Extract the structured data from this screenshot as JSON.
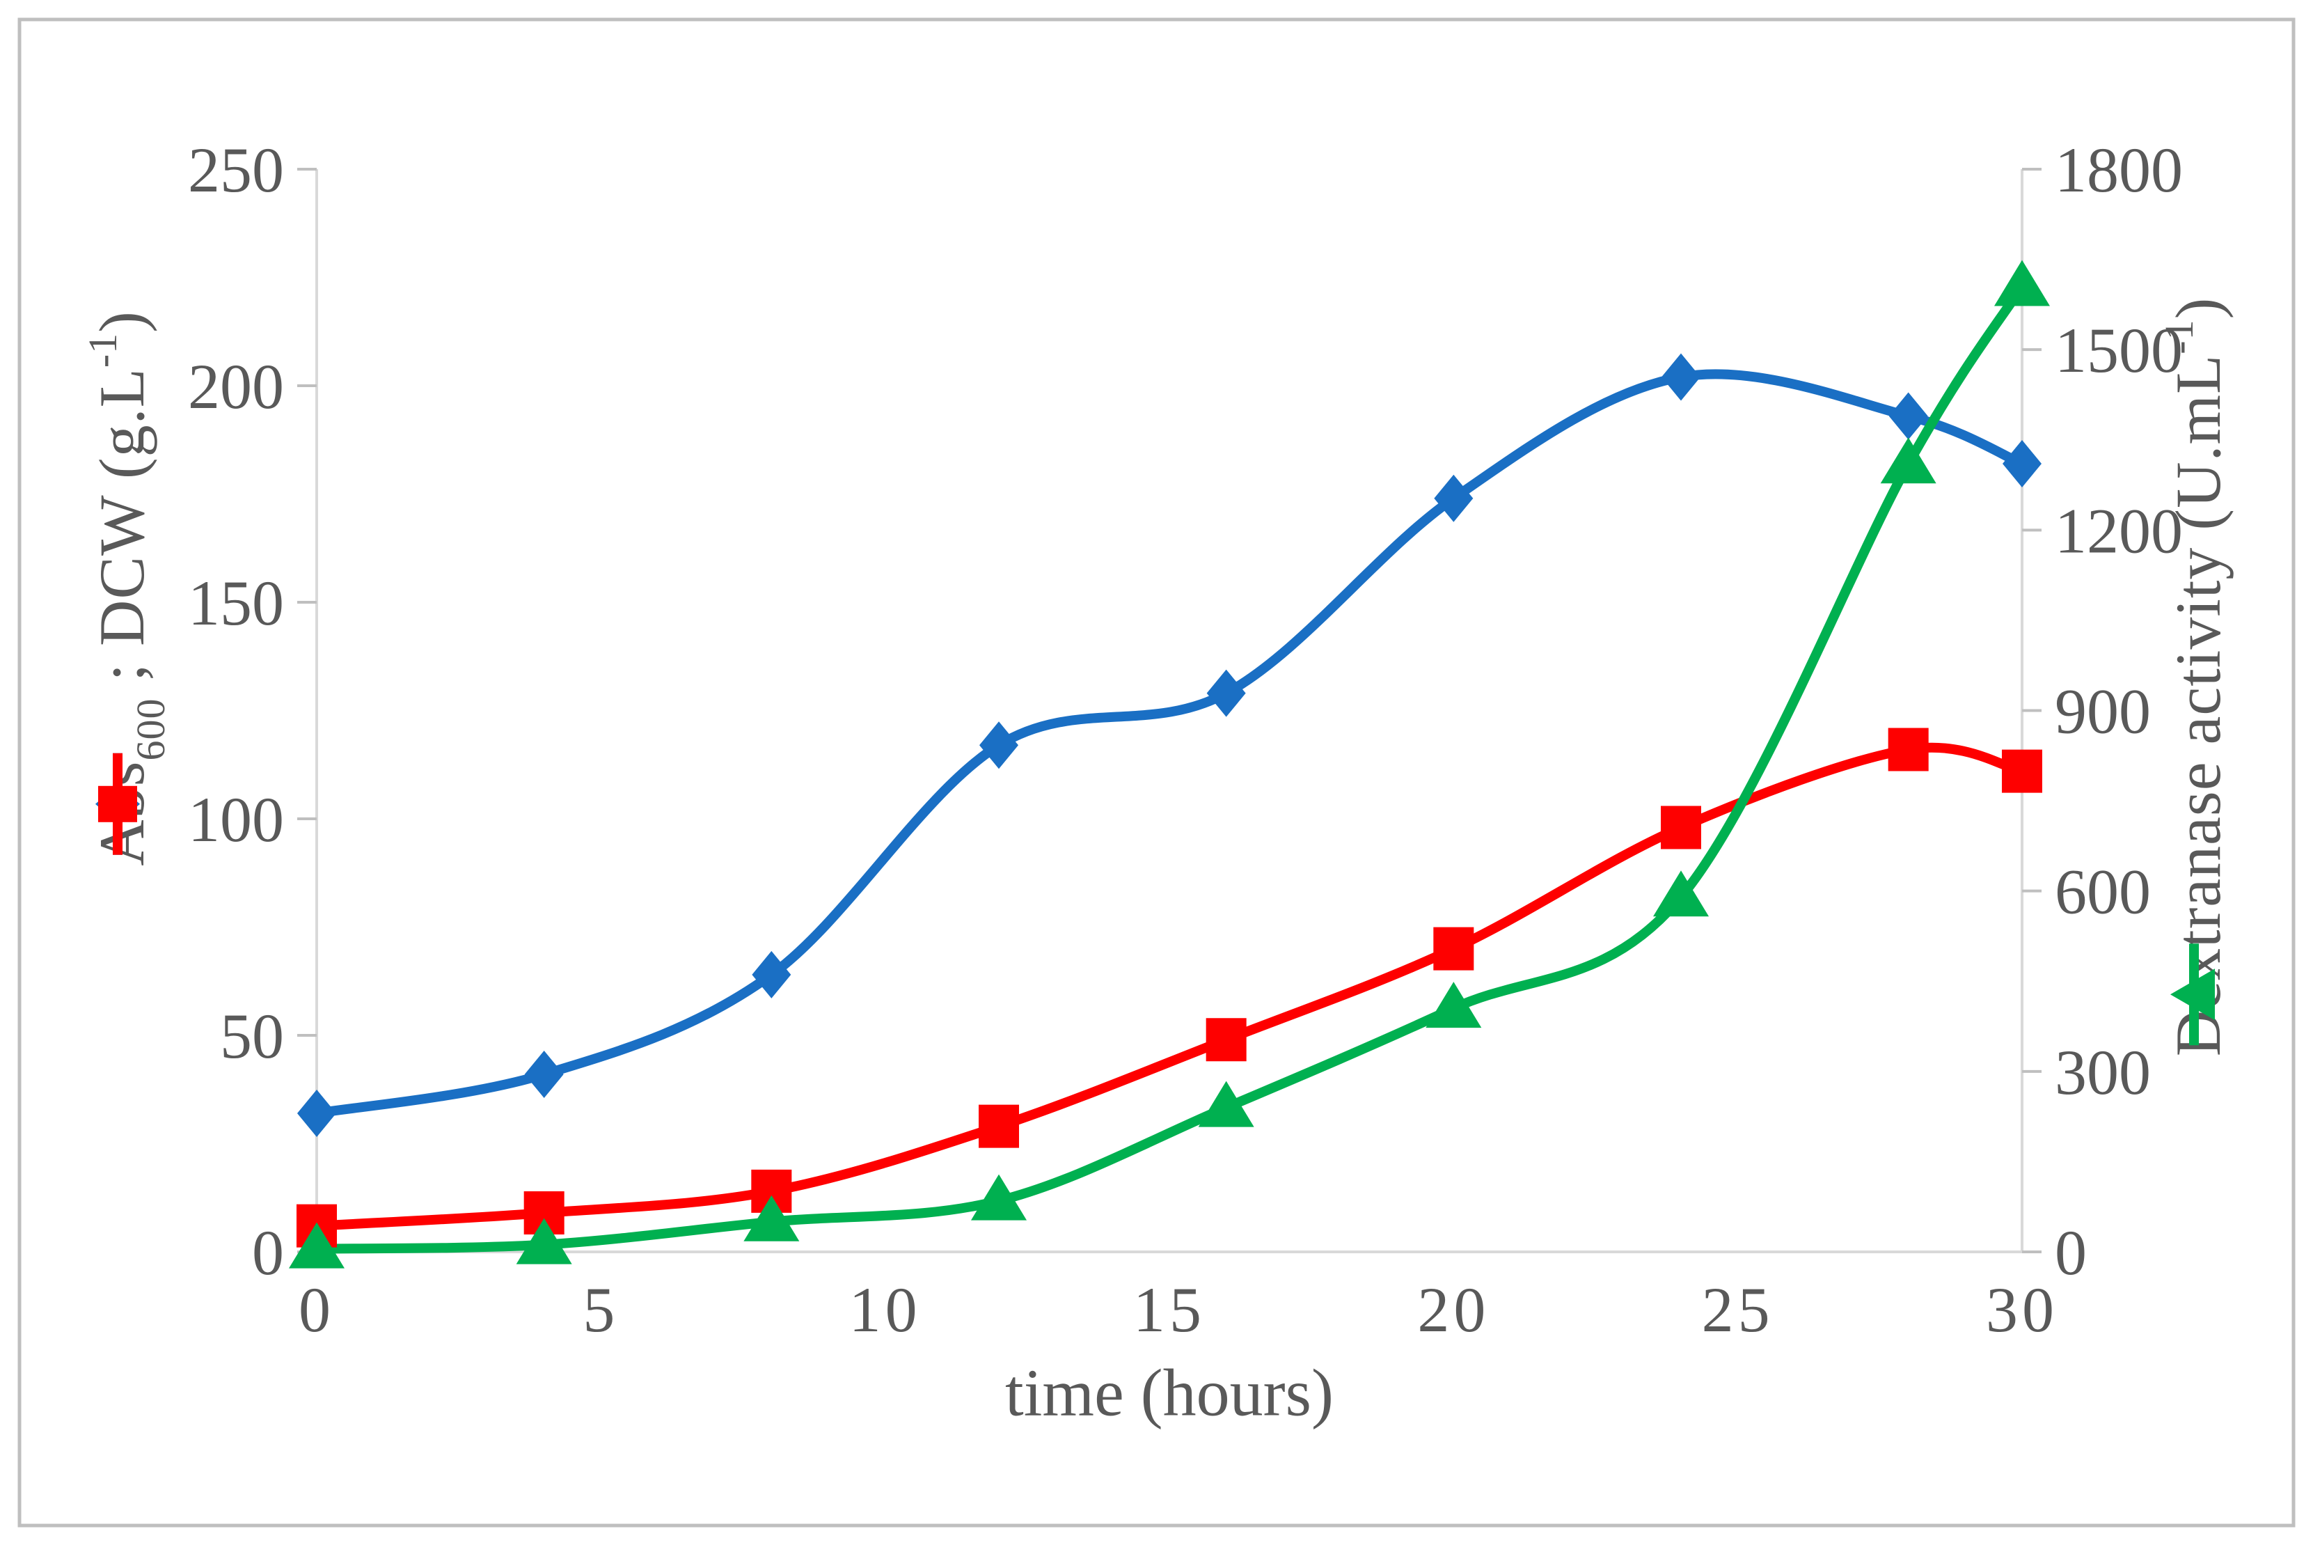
{
  "figure": {
    "background": "#FFFFFF",
    "border_color": "#BFBFBF"
  },
  "x_title": "time (hours)",
  "left_title": {
    "pre": "Abs",
    "sub": "600",
    "mid": " ; DCW (g.L",
    "sup": "-1",
    "post": ")"
  },
  "right_title": {
    "pre": "Dextranase activity (U.mL",
    "sup": "-1",
    "post": ")"
  },
  "colors": {
    "blue_series": "#1A6FC4",
    "red_series": "#FE0000",
    "green_series": "#00B050",
    "axis_text": "#595959",
    "axis_line": "#D9D9D9",
    "tick_mark": "#BFBFBF"
  },
  "chart_data": {
    "type": "line",
    "title": "",
    "xlabel": "time (hours)",
    "x_range": [
      0,
      30
    ],
    "x_ticks": [
      "0",
      "5",
      "10",
      "15",
      "20",
      "25",
      "30"
    ],
    "left_axis": {
      "label": "Abs600 ; DCW (g.L-1)",
      "range": [
        0,
        250
      ],
      "ticks": [
        "0",
        "50",
        "100",
        "150",
        "200",
        "250"
      ]
    },
    "right_axis": {
      "label": "Dextranase activity (U.mL-1)",
      "range": [
        0,
        1800
      ],
      "ticks": [
        "0",
        "300",
        "600",
        "900",
        "1200",
        "1500",
        "1800"
      ]
    },
    "grid": false,
    "legend_position": "inside-axis-titles",
    "x": [
      0,
      4,
      8,
      12,
      16,
      20,
      24,
      28,
      30
    ],
    "series": [
      {
        "name": "Abs600",
        "axis": "left",
        "marker": "diamond",
        "color": "#1A6FC4",
        "values": [
          32,
          41,
          64,
          117,
          129,
          174,
          202,
          193,
          182
        ]
      },
      {
        "name": "DCW (g.L-1)",
        "axis": "left",
        "marker": "square",
        "color": "#FE0000",
        "values": [
          6,
          9,
          14,
          29,
          49,
          70,
          98,
          116,
          111
        ]
      },
      {
        "name": "Dextranase activity (U.mL-1)",
        "axis": "right",
        "marker": "triangle",
        "color": "#00B050",
        "values": [
          5,
          12,
          50,
          85,
          240,
          405,
          590,
          1310,
          1605
        ]
      }
    ]
  }
}
